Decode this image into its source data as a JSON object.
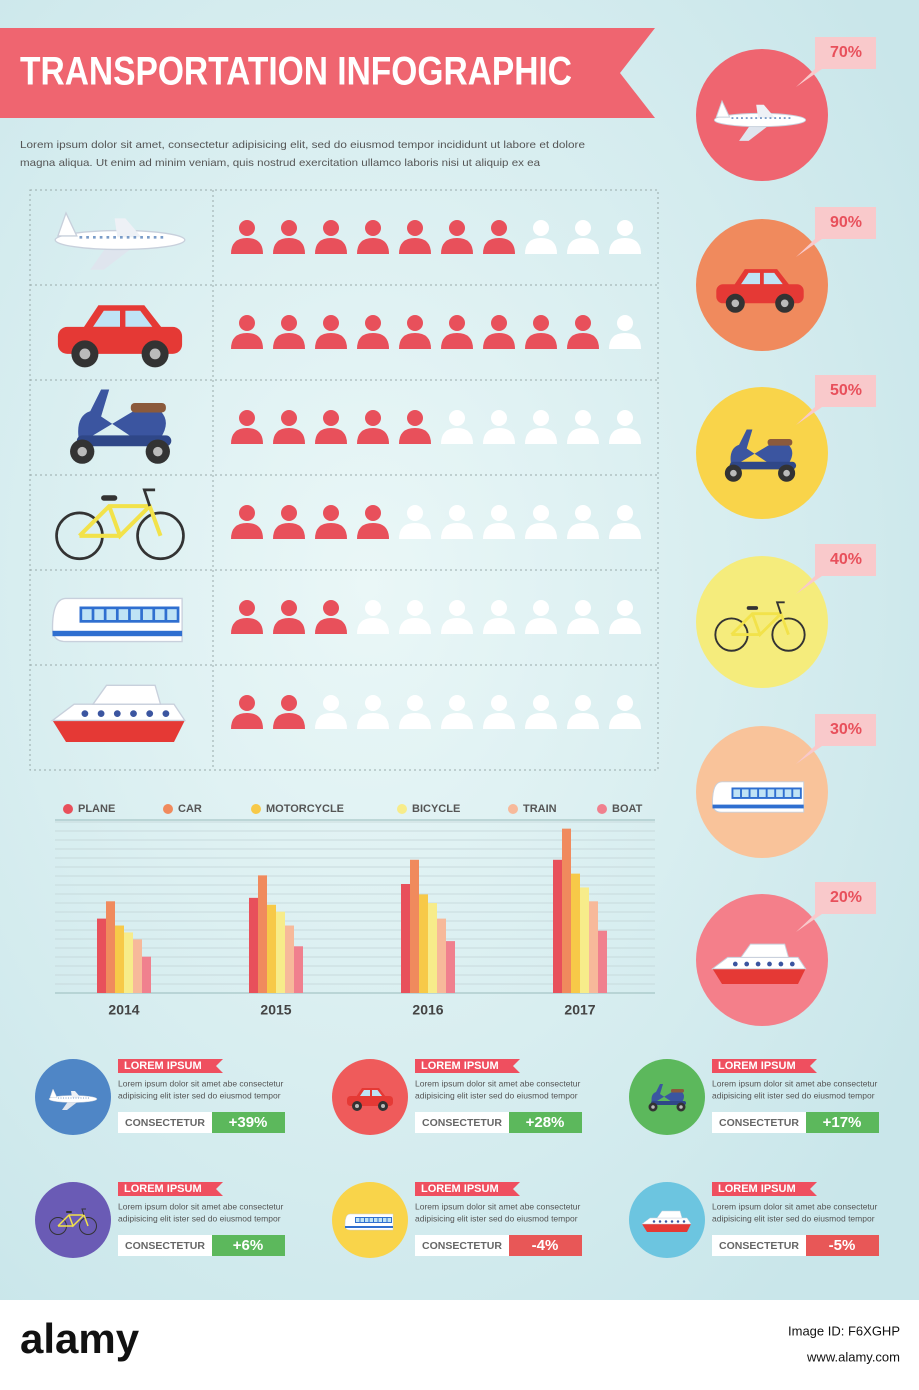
{
  "title": "TRANSPORTATION INFOGRAPHIC",
  "intro": [
    "Lorem ipsum dolor sit amet, consectetur adipisicing elit, sed do eiusmod tempor incididunt ut labore et dolore",
    "magna aliqua. Ut enim ad minim veniam, quis nostrud exercitation ullamco laboris nisi ut aliquip ex ea"
  ],
  "pictogram": {
    "rows": [
      {
        "filled": 7,
        "total": 10
      },
      {
        "filled": 9,
        "total": 10
      },
      {
        "filled": 5,
        "total": 10
      },
      {
        "filled": 4,
        "total": 10
      },
      {
        "filled": 3,
        "total": 10
      },
      {
        "filled": 2,
        "total": 10
      }
    ]
  },
  "badges": {
    "values": [
      70,
      90,
      50,
      40,
      30,
      20
    ],
    "value_labels": [
      "70%",
      "90%",
      "50%",
      "40%",
      "30%",
      "20%"
    ],
    "colors": [
      "#ef6570",
      "#f08a5d",
      "#f9d44a",
      "#f5ec7c",
      "#f9c39a",
      "#f47f8a"
    ]
  },
  "chart_data": {
    "type": "bar",
    "categories": [
      "2014",
      "2015",
      "2016",
      "2017"
    ],
    "series": [
      {
        "name": "PLANE",
        "color": "#e8505b",
        "values": [
          43,
          55,
          63,
          77
        ]
      },
      {
        "name": "CAR",
        "color": "#f08a5d",
        "values": [
          53,
          68,
          77,
          95
        ]
      },
      {
        "name": "MOTORCYCLE",
        "color": "#f7c948",
        "values": [
          39,
          51,
          57,
          69
        ]
      },
      {
        "name": "BICYCLE",
        "color": "#f7ec8a",
        "values": [
          35,
          47,
          52,
          61
        ]
      },
      {
        "name": "TRAIN",
        "color": "#f7b99a",
        "values": [
          31,
          39,
          43,
          53
        ]
      },
      {
        "name": "BOAT",
        "color": "#f0808e",
        "values": [
          21,
          27,
          30,
          36
        ]
      }
    ],
    "ylim": [
      0,
      100
    ],
    "grid": true,
    "legend": "top"
  },
  "cards": [
    {
      "heading": "LOREM IPSUM",
      "text": [
        "Lorem ipsum dolor sit amet abe consectetur",
        "adipisicing elit ister sed do eiusmod tempor"
      ],
      "button": "CONSECTETUR",
      "change": {
        "value": 39,
        "label": "+39%"
      },
      "color": "#4f86c6"
    },
    {
      "heading": "LOREM IPSUM",
      "text": [
        "Lorem ipsum dolor sit amet abe consectetur",
        "adipisicing elit ister sed do eiusmod tempor"
      ],
      "button": "CONSECTETUR",
      "change": {
        "value": 28,
        "label": "+28%"
      },
      "color": "#ef5b5b"
    },
    {
      "heading": "LOREM IPSUM",
      "text": [
        "Lorem ipsum dolor sit amet abe consectetur",
        "adipisicing elit ister sed do eiusmod tempor"
      ],
      "button": "CONSECTETUR",
      "change": {
        "value": 17,
        "label": "+17%"
      },
      "color": "#5cb85c"
    },
    {
      "heading": "LOREM IPSUM",
      "text": [
        "Lorem ipsum dolor sit amet abe consectetur",
        "adipisicing elit ister sed do eiusmod tempor"
      ],
      "button": "CONSECTETUR",
      "change": {
        "value": 6,
        "label": "+6%"
      },
      "color": "#6a5bb5"
    },
    {
      "heading": "LOREM IPSUM",
      "text": [
        "Lorem ipsum dolor sit amet abe consectetur",
        "adipisicing elit ister sed do eiusmod tempor"
      ],
      "button": "CONSECTETUR",
      "change": {
        "value": -4,
        "label": "-4%"
      },
      "color": "#f9d44a"
    },
    {
      "heading": "LOREM IPSUM",
      "text": [
        "Lorem ipsum dolor sit amet abe consectetur",
        "adipisicing elit ister sed do eiusmod tempor"
      ],
      "button": "CONSECTETUR",
      "change": {
        "value": -5,
        "label": "-5%"
      },
      "color": "#6cc5e0"
    }
  ],
  "footer": {
    "brand": "alamy",
    "image_id": "Image ID: F6XGHP",
    "url": "www.alamy.com"
  }
}
